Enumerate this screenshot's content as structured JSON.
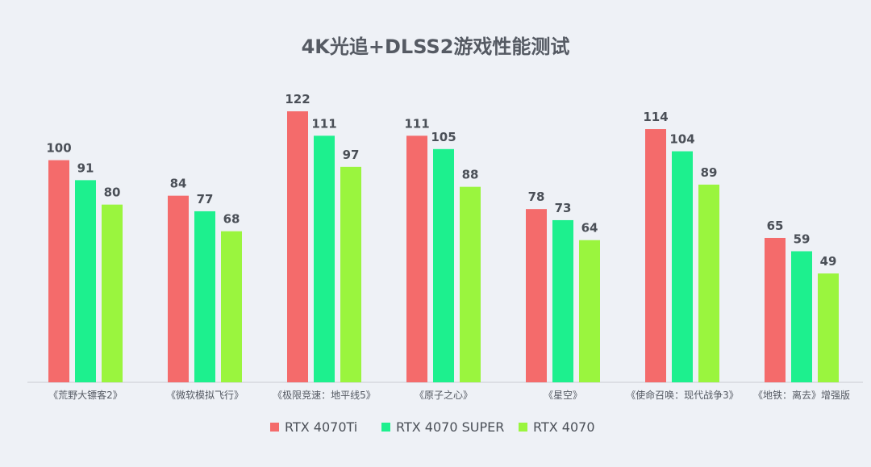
{
  "chart_data": {
    "type": "bar",
    "title": "4K光追+DLSS2游戏性能测试",
    "categories": [
      "《荒野大镖客2》",
      "《微软模拟飞行》",
      "《极限竞速：地平线5》",
      "《原子之心》",
      "《星空》",
      "《使命召唤：现代战争3》",
      "《地铁：离去》增强版"
    ],
    "series": [
      {
        "name": "RTX 4070Ti",
        "color": "#f46b6b",
        "values": [
          100,
          84,
          122,
          111,
          78,
          114,
          65
        ]
      },
      {
        "name": "RTX 4070 SUPER",
        "color": "#1df08e",
        "values": [
          91,
          77,
          111,
          105,
          73,
          104,
          59
        ]
      },
      {
        "name": "RTX 4070",
        "color": "#9af53e",
        "values": [
          80,
          68,
          97,
          88,
          64,
          89,
          49
        ]
      }
    ],
    "xlabel": "",
    "ylabel": "",
    "ylim": [
      0,
      122
    ],
    "grid": false,
    "legend": "bottom"
  }
}
